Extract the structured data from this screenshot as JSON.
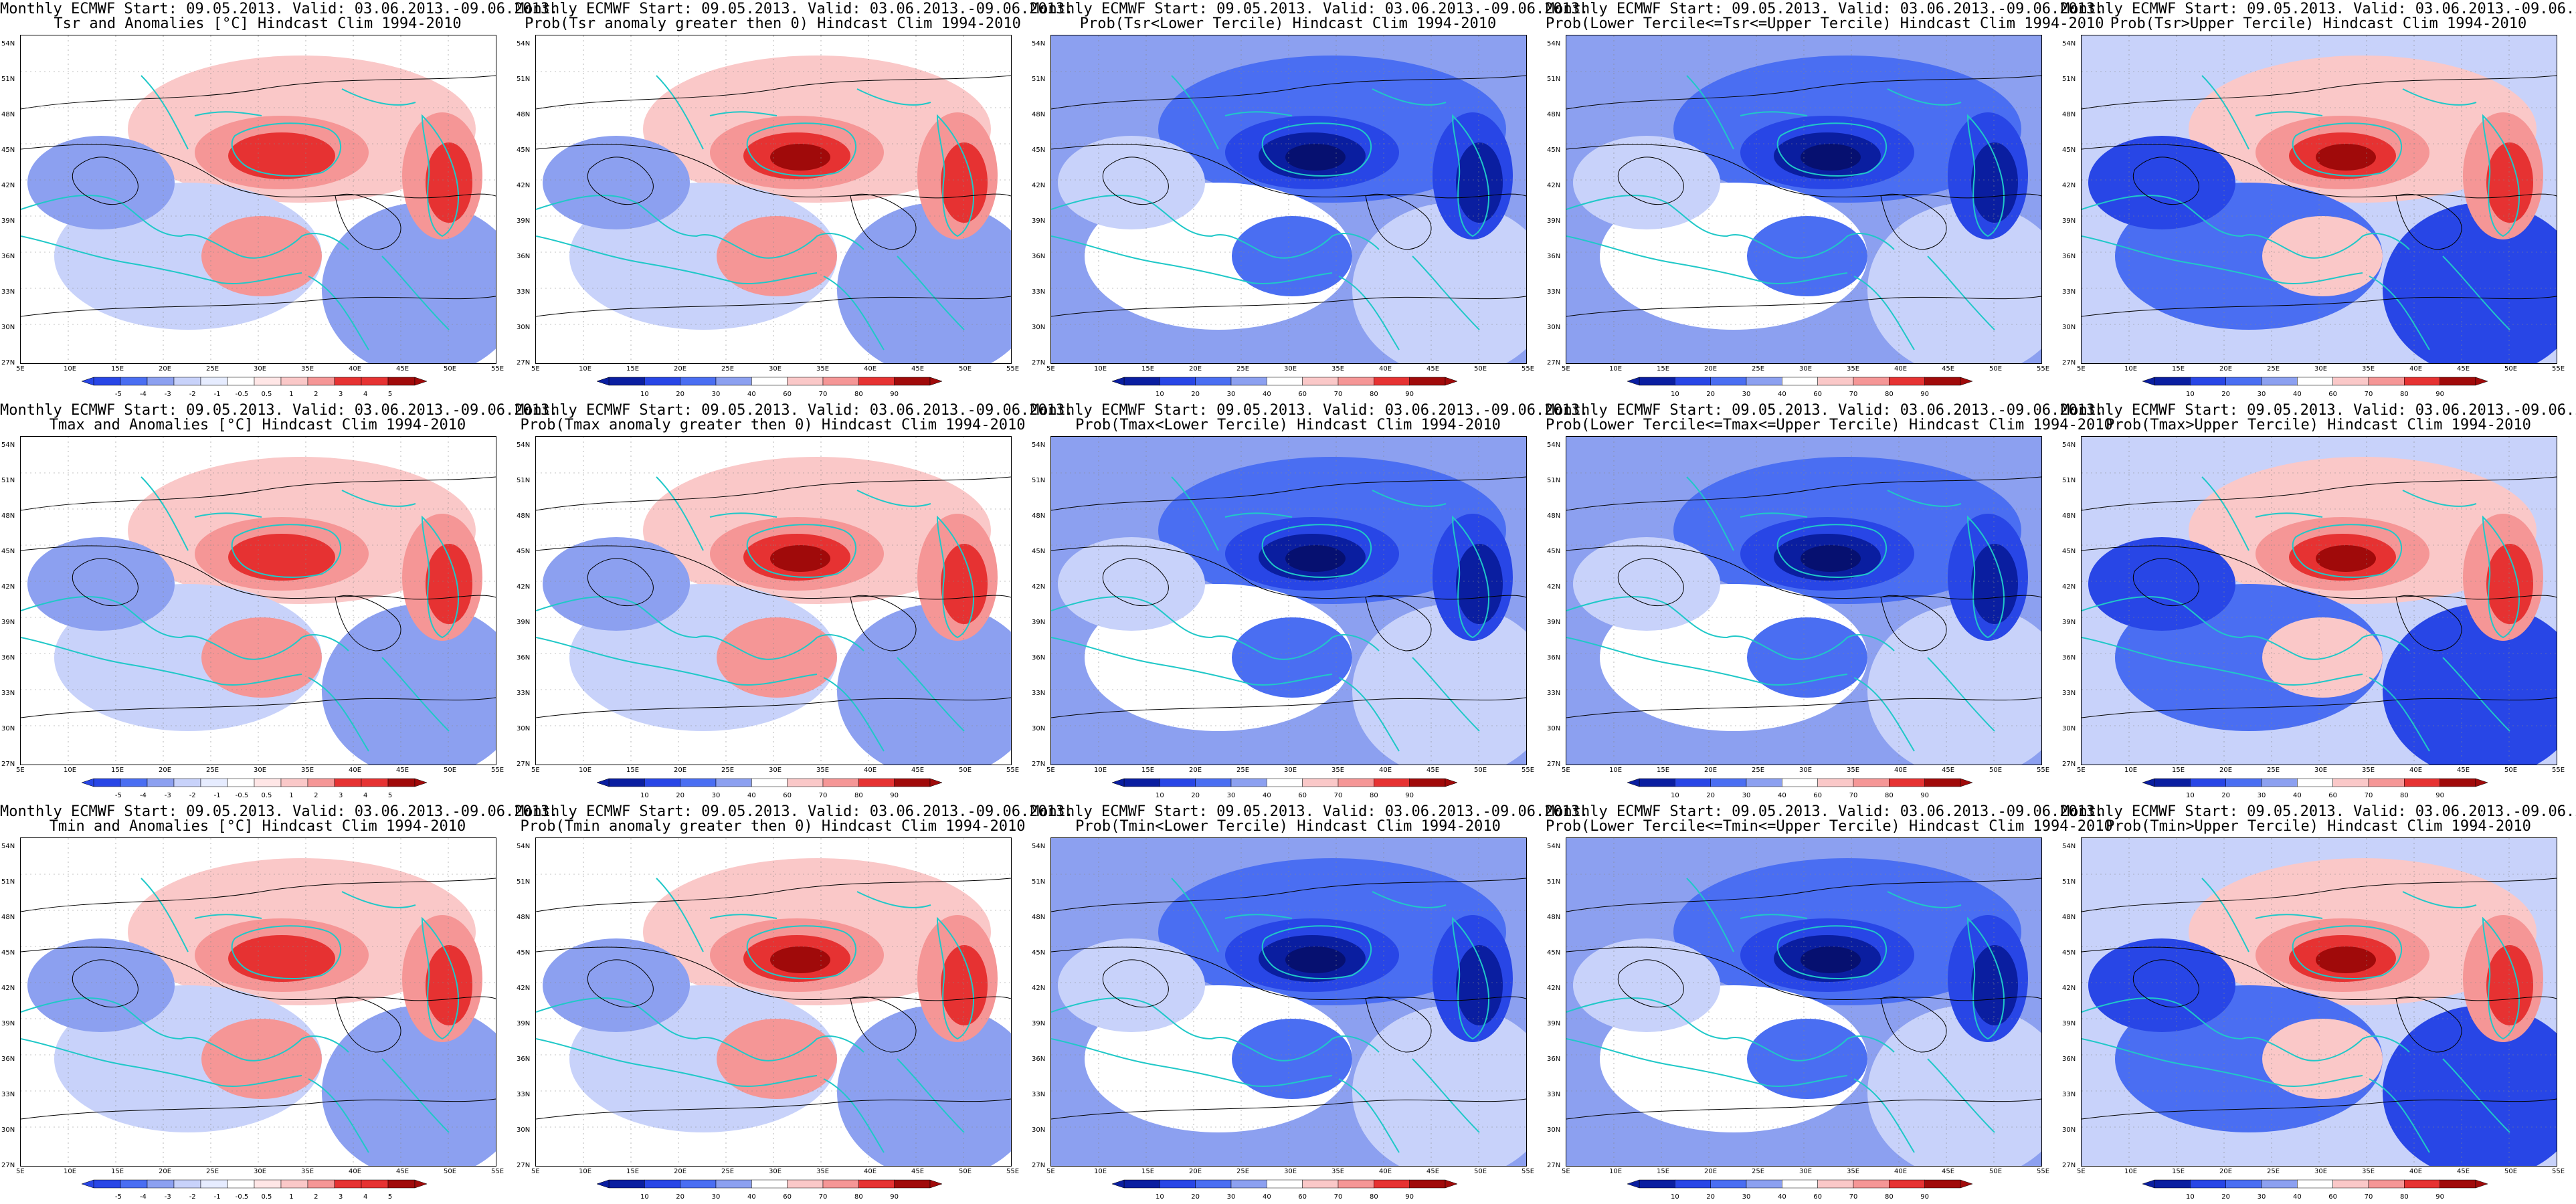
{
  "colors": {
    "dark_blue": "#0a1ea0",
    "mid_blue": "#2846e6",
    "blue": "#4a6ef2",
    "light_blue": "#8ca0f0",
    "pale_blue": "#c8d2fa",
    "pale_red": "#fac8c8",
    "light_red": "#f59696",
    "red": "#e63232",
    "dark_red": "#a00a0a",
    "coast": "#20c8c8",
    "contour": "#000000"
  },
  "header": "Monthly ECMWF Start: 09.05.2013. Valid: 03.06.2013.-09.06.2013.",
  "lat_labels": [
    "54N",
    "51N",
    "48N",
    "45N",
    "42N",
    "39N",
    "36N",
    "33N",
    "30N",
    "27N"
  ],
  "lon_labels": [
    "5E",
    "10E",
    "15E",
    "20E",
    "25E",
    "30E",
    "35E",
    "40E",
    "45E",
    "50E",
    "55E"
  ],
  "anom_ticks": [
    "-5",
    "-4",
    "-3",
    "-2",
    "-1",
    "-0.5",
    "0.5",
    "1",
    "2",
    "3",
    "4",
    "5"
  ],
  "prob_ticks": [
    "10",
    "20",
    "30",
    "40",
    "60",
    "70",
    "80",
    "90"
  ],
  "panels": [
    {
      "id": "tsr-anom",
      "subtitle": "Tsr and Anomalies [°C] Hindcast Clim 1994-2010",
      "kind": "anom",
      "cbar": "anom",
      "showCbar": true
    },
    {
      "id": "tsr-probpos",
      "subtitle": "Prob(Tsr anomaly greater then 0) Hindcast Clim 1994-2010",
      "kind": "probpos",
      "cbar": "prob",
      "showCbar": true
    },
    {
      "id": "tsr-lower",
      "subtitle": "Prob(Tsr<Lower Tercile) Hindcast Clim 1994-2010",
      "kind": "lower",
      "cbar": "prob",
      "showCbar": true
    },
    {
      "id": "tsr-middle",
      "subtitle": "Prob(Lower Tercile<=Tsr<=Upper Tercile) Hindcast Clim 1994-2010",
      "kind": "middle",
      "cbar": "prob",
      "showCbar": true
    },
    {
      "id": "tsr-upper",
      "subtitle": "Prob(Tsr>Upper Tercile) Hindcast Clim 1994-2010",
      "kind": "upper",
      "cbar": "prob",
      "showCbar": true
    },
    {
      "id": "tmax-anom",
      "subtitle": "Tmax and Anomalies [°C] Hindcast Clim 1994-2010",
      "kind": "anom",
      "cbar": "anom",
      "showCbar": true
    },
    {
      "id": "tmax-probpos",
      "subtitle": "Prob(Tmax anomaly greater then 0) Hindcast Clim 1994-2010",
      "kind": "probpos",
      "cbar": "prob",
      "showCbar": true
    },
    {
      "id": "tmax-lower",
      "subtitle": "Prob(Tmax<Lower Tercile) Hindcast Clim 1994-2010",
      "kind": "lower",
      "cbar": "prob",
      "showCbar": true
    },
    {
      "id": "tmax-middle",
      "subtitle": "Prob(Lower Tercile<=Tmax<=Upper Tercile) Hindcast Clim 1994-2010",
      "kind": "middle",
      "cbar": "prob",
      "showCbar": true
    },
    {
      "id": "tmax-upper",
      "subtitle": "Prob(Tmax>Upper Tercile) Hindcast Clim 1994-2010",
      "kind": "upper",
      "cbar": "prob",
      "showCbar": true
    },
    {
      "id": "tmin-anom",
      "subtitle": "Tmin and Anomalies [°C] Hindcast Clim 1994-2010",
      "kind": "anom",
      "cbar": "anom",
      "showCbar": true
    },
    {
      "id": "tmin-probpos",
      "subtitle": "Prob(Tmin anomaly greater then 0) Hindcast Clim 1994-2010",
      "kind": "probpos",
      "cbar": "prob",
      "showCbar": true
    },
    {
      "id": "tmin-lower",
      "subtitle": "Prob(Tmin<Lower Tercile) Hindcast Clim 1994-2010",
      "kind": "lower",
      "cbar": "prob",
      "showCbar": true
    },
    {
      "id": "tmin-middle",
      "subtitle": "Prob(Lower Tercile<=Tmin<=Upper Tercile) Hindcast Clim 1994-2010",
      "kind": "middle",
      "cbar": "prob",
      "showCbar": true
    },
    {
      "id": "tmin-upper",
      "subtitle": "Prob(Tmin>Upper Tercile) Hindcast Clim 1994-2010",
      "kind": "upper",
      "cbar": "prob",
      "showCbar": true
    }
  ]
}
